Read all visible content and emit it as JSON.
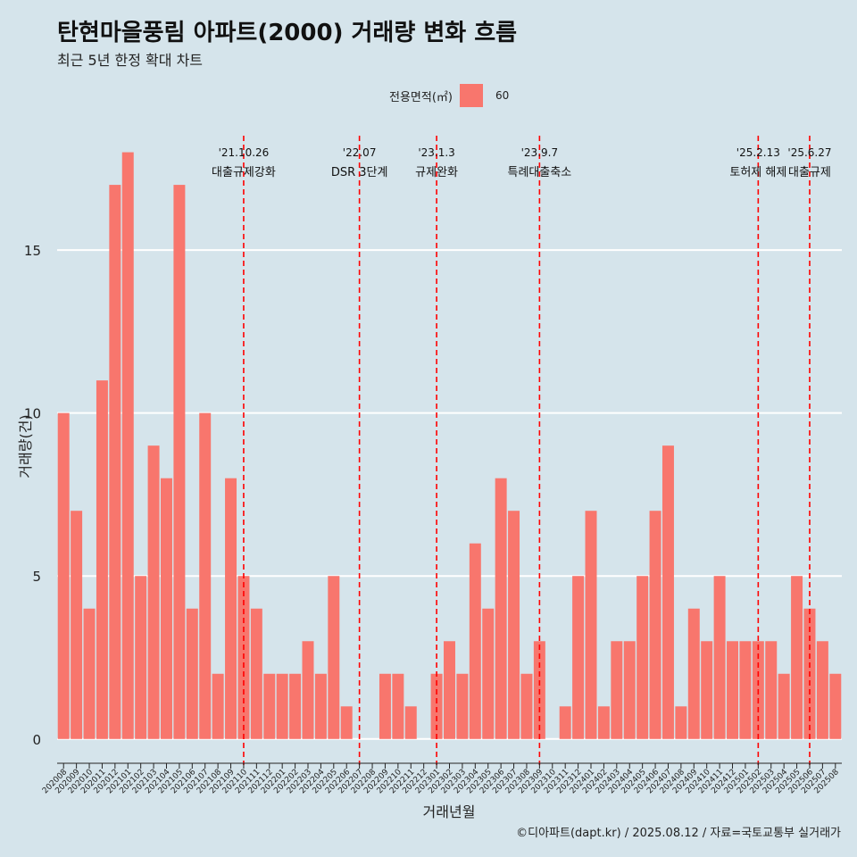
{
  "title": "탄현마을풍림 아파트(2000) 거래량 변화 흐름",
  "subtitle": "최근 5년 한정 확대 차트",
  "legend": {
    "title": "전용면적(㎡)",
    "items": [
      {
        "label": "60",
        "color": "#f8766d"
      }
    ]
  },
  "caption": "©디아파트(dapt.kr) / 2025.08.12 / 자료=국토교통부 실거래가",
  "colors": {
    "background": "#d5e4eb",
    "bar": "#f8766d",
    "grid": "#ffffff",
    "event_line": "#ff0000"
  },
  "chart_data": {
    "type": "bar",
    "xlabel": "거래년월",
    "ylabel": "거래량(건)",
    "ylim": [
      -0.8,
      18.7
    ],
    "yticks": [
      0,
      5,
      10,
      15
    ],
    "grid": true,
    "legend_position": "top",
    "categories": [
      "202008",
      "202009",
      "202010",
      "202011",
      "202012",
      "202101",
      "202102",
      "202103",
      "202104",
      "202105",
      "202106",
      "202107",
      "202108",
      "202109",
      "202110",
      "202111",
      "202112",
      "202201",
      "202202",
      "202203",
      "202204",
      "202205",
      "202206",
      "202207",
      "202208",
      "202209",
      "202210",
      "202211",
      "202212",
      "202301",
      "202302",
      "202303",
      "202304",
      "202305",
      "202306",
      "202307",
      "202308",
      "202309",
      "202310",
      "202311",
      "202312",
      "202401",
      "202402",
      "202403",
      "202404",
      "202405",
      "202406",
      "202407",
      "202408",
      "202409",
      "202410",
      "202411",
      "202412",
      "202501",
      "202502",
      "202503",
      "202504",
      "202505",
      "202506",
      "202507",
      "202508"
    ],
    "series": [
      {
        "name": "60",
        "values": [
          10,
          7,
          4,
          11,
          17,
          18,
          5,
          9,
          8,
          17,
          4,
          10,
          2,
          8,
          5,
          4,
          2,
          2,
          2,
          3,
          2,
          5,
          1,
          0,
          0,
          2,
          2,
          1,
          0,
          2,
          3,
          2,
          6,
          4,
          8,
          7,
          2,
          3,
          0,
          1,
          5,
          7,
          1,
          3,
          3,
          5,
          7,
          9,
          1,
          4,
          3,
          5,
          3,
          3,
          3,
          3,
          2,
          5,
          4,
          3,
          2
        ]
      }
    ],
    "events": [
      {
        "date": "'21.10.26",
        "label": "대출규제강화",
        "x": "202110"
      },
      {
        "date": "'22.07",
        "label": "DSR 3단계",
        "x": "202207"
      },
      {
        "date": "'23.1.3",
        "label": "규제완화",
        "x": "202301"
      },
      {
        "date": "'23.9.7",
        "label": "특례대출축소",
        "x": "202309"
      },
      {
        "date": "'25.2.13",
        "label": "토허제 해제",
        "x": "202502"
      },
      {
        "date": "'25.6.27",
        "label": "대출규제",
        "x": "202506"
      }
    ]
  }
}
